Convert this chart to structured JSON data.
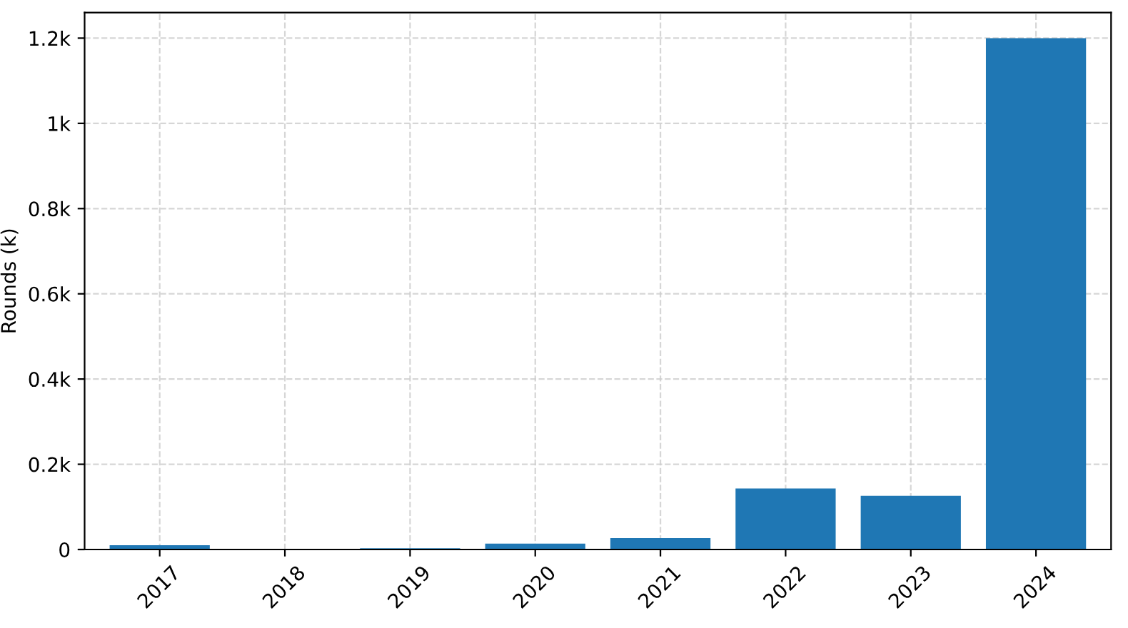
{
  "chart_data": {
    "type": "bar",
    "ylabel": "Rounds (k)",
    "categories": [
      "2017",
      "2018",
      "2019",
      "2020",
      "2021",
      "2022",
      "2023",
      "2024"
    ],
    "values": [
      10,
      0,
      3,
      14,
      27,
      143,
      126,
      1200
    ],
    "color": "#1f77b4",
    "ylim": [
      0,
      1260
    ],
    "yticks": [
      0,
      {
        "value": 200,
        "label": "0.2k"
      },
      {
        "value": 400,
        "label": "0.4k"
      },
      {
        "value": 600,
        "label": "0.6k"
      },
      {
        "value": 800,
        "label": "0.8k"
      },
      {
        "value": 1000,
        "label": "1k"
      },
      {
        "value": 1200,
        "label": "1.2k"
      }
    ],
    "grid": true
  }
}
